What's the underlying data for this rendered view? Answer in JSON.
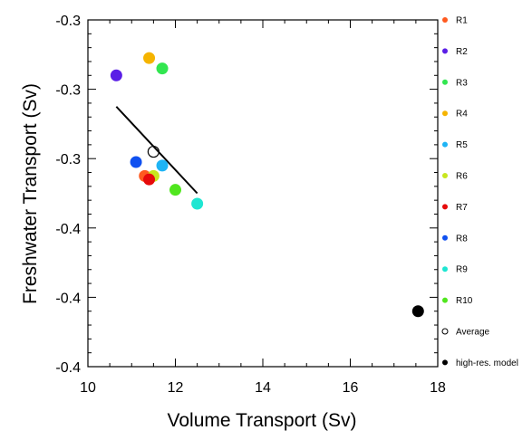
{
  "chart_data": {
    "type": "scatter",
    "title": "",
    "xlabel": "Volume Transport (Sv)",
    "ylabel": "Freshwater Transport (Sv)",
    "xlim": [
      10,
      18
    ],
    "ylim": [
      -0.4,
      -0.3
    ],
    "x_ticks": [
      10,
      12,
      14,
      16,
      18
    ],
    "y_tick_labels": [
      "-0.3",
      "-0.3",
      "-0.3",
      "-0.4",
      "-0.4",
      "-0.4"
    ],
    "grid": false,
    "legend_position": "right",
    "series": [
      {
        "name": "R1",
        "color": "#ff5a1f",
        "marker": "filled-circle",
        "x": 11.3,
        "y": -0.345
      },
      {
        "name": "R2",
        "color": "#5a1ee6",
        "marker": "filled-circle",
        "x": 10.65,
        "y": -0.316
      },
      {
        "name": "R3",
        "color": "#32e650",
        "marker": "filled-circle",
        "x": 11.7,
        "y": -0.314
      },
      {
        "name": "R4",
        "color": "#f5b400",
        "marker": "filled-circle",
        "x": 11.4,
        "y": -0.311
      },
      {
        "name": "R5",
        "color": "#1eb4f5",
        "marker": "filled-circle",
        "x": 11.7,
        "y": -0.342
      },
      {
        "name": "R6",
        "color": "#c8e61e",
        "marker": "filled-circle",
        "x": 11.5,
        "y": -0.345
      },
      {
        "name": "R7",
        "color": "#e60a0a",
        "marker": "filled-circle",
        "x": 11.4,
        "y": -0.346
      },
      {
        "name": "R8",
        "color": "#0f50f0",
        "marker": "filled-circle",
        "x": 11.1,
        "y": -0.341
      },
      {
        "name": "R9",
        "color": "#1ee6d2",
        "marker": "filled-circle",
        "x": 12.5,
        "y": -0.353
      },
      {
        "name": "R10",
        "color": "#50e61e",
        "marker": "filled-circle",
        "x": 12.0,
        "y": -0.349
      },
      {
        "name": "Average",
        "color": "#000000",
        "marker": "open-circle",
        "x": 11.5,
        "y": -0.338
      },
      {
        "name": "high-res. model",
        "color": "#000000",
        "marker": "filled-circle",
        "x": 17.55,
        "y": -0.384
      }
    ],
    "fit_line": {
      "x": [
        10.65,
        12.5
      ],
      "y": [
        -0.325,
        -0.35
      ],
      "color": "#000000"
    }
  }
}
